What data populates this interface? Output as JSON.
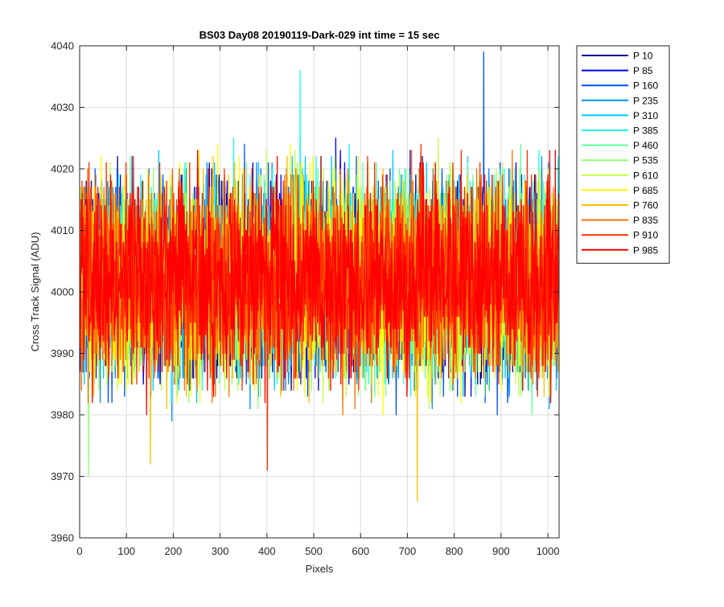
{
  "chart_data": {
    "type": "line",
    "title": "BS03 Day08 20190119-Dark-029 int time = 15 sec",
    "xlabel": "Pixels",
    "ylabel": "Cross Track Signal (ADU)",
    "xlim": [
      0,
      1024
    ],
    "ylim": [
      3960,
      4040
    ],
    "x_ticks": [
      "0",
      "100",
      "200",
      "300",
      "400",
      "500",
      "600",
      "700",
      "800",
      "900",
      "1000"
    ],
    "y_ticks": [
      "3960",
      "3970",
      "3980",
      "3990",
      "4000",
      "4010",
      "4020",
      "4030",
      "4040"
    ],
    "grid": true,
    "legend_position": "outside-top-right",
    "noise_model": {
      "mean": 4002,
      "spread": 7.5,
      "samples_per_series": 1024
    },
    "series": [
      {
        "name": "P 10",
        "color": "#00008f"
      },
      {
        "name": "P 85",
        "color": "#0000ef"
      },
      {
        "name": "P 160",
        "color": "#0050ff"
      },
      {
        "name": "P 235",
        "color": "#0090ff"
      },
      {
        "name": "P 310",
        "color": "#00c8ff"
      },
      {
        "name": "P 385",
        "color": "#10ffef"
      },
      {
        "name": "P 460",
        "color": "#60ffa0"
      },
      {
        "name": "P 535",
        "color": "#90ff70"
      },
      {
        "name": "P 610",
        "color": "#c0ff40"
      },
      {
        "name": "P 685",
        "color": "#ffff00"
      },
      {
        "name": "P 760",
        "color": "#ffc000"
      },
      {
        "name": "P 835",
        "color": "#ff7000"
      },
      {
        "name": "P 910",
        "color": "#ff3000"
      },
      {
        "name": "P 985",
        "color": "#ff0000"
      }
    ],
    "annotated_extremes": [
      {
        "series": "P 160",
        "x": 862,
        "y": 4039
      },
      {
        "series": "P 385",
        "x": 470,
        "y": 4036
      },
      {
        "series": "P 760",
        "x": 720,
        "y": 3966
      },
      {
        "series": "P 535",
        "x": 18,
        "y": 3970
      },
      {
        "series": "P 910",
        "x": 400,
        "y": 3971
      },
      {
        "series": "P 760",
        "x": 150,
        "y": 3972
      }
    ]
  }
}
